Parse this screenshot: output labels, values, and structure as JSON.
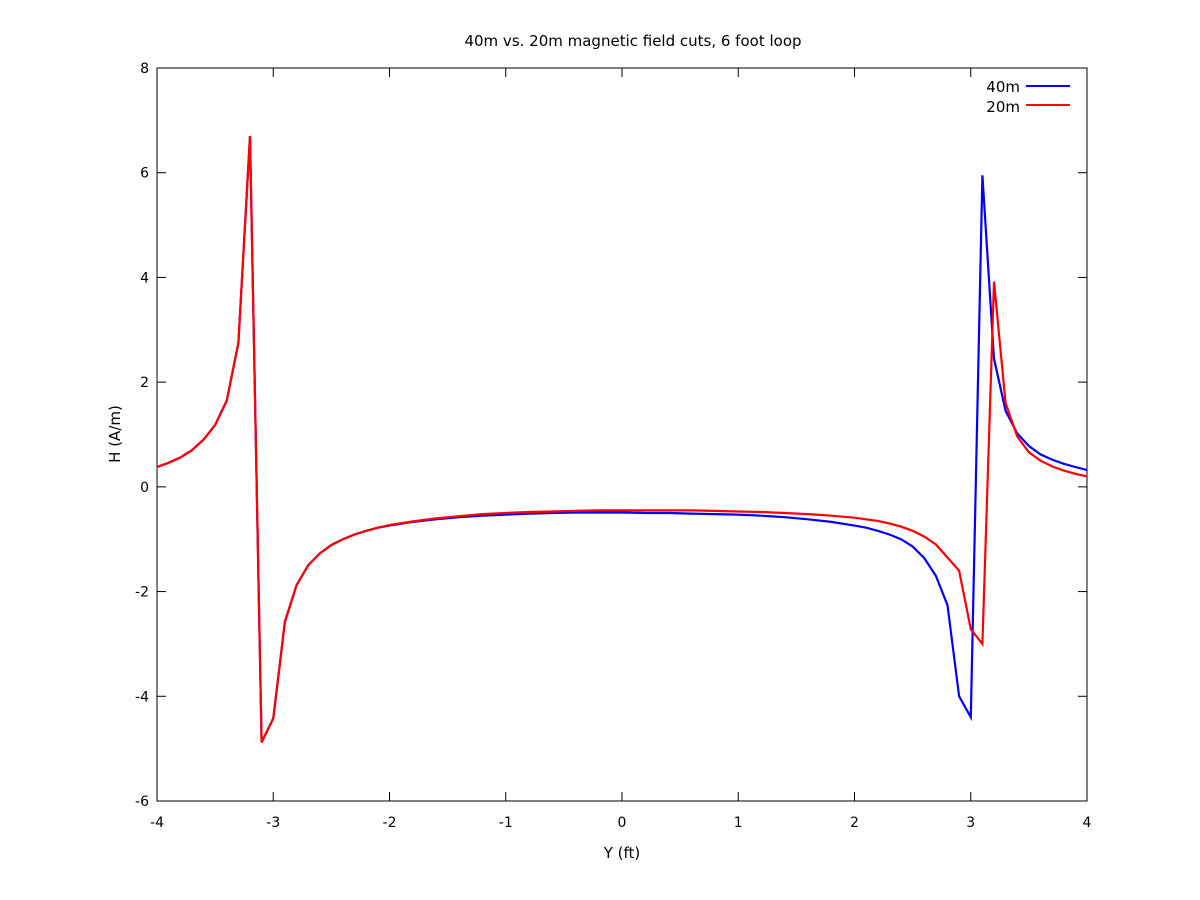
{
  "chart_data": {
    "type": "line",
    "title": "40m vs. 20m magnetic field cuts, 6 foot loop",
    "xlabel": "Y (ft)",
    "ylabel": "H (A/m)",
    "xlim": [
      -4,
      4
    ],
    "ylim": [
      -6,
      8
    ],
    "xticks": [
      -4,
      -3,
      -2,
      -1,
      0,
      1,
      2,
      3,
      4
    ],
    "yticks": [
      -6,
      -4,
      -2,
      0,
      2,
      4,
      6,
      8
    ],
    "grid": false,
    "legend": "top-right",
    "series": [
      {
        "name": "40m",
        "color": "#0000ff",
        "x": [
          -4.0,
          -3.9,
          -3.8,
          -3.7,
          -3.6,
          -3.5,
          -3.4,
          -3.3,
          -3.2,
          -3.1,
          -3.0,
          -2.9,
          -2.8,
          -2.7,
          -2.6,
          -2.5,
          -2.4,
          -2.3,
          -2.2,
          -2.1,
          -2.0,
          -1.8,
          -1.6,
          -1.4,
          -1.2,
          -1.0,
          -0.8,
          -0.6,
          -0.4,
          -0.2,
          0.0,
          0.2,
          0.4,
          0.6,
          0.8,
          1.0,
          1.2,
          1.4,
          1.6,
          1.8,
          2.0,
          2.1,
          2.2,
          2.3,
          2.4,
          2.5,
          2.6,
          2.7,
          2.8,
          2.9,
          3.0,
          3.1,
          3.2,
          3.3,
          3.4,
          3.5,
          3.6,
          3.7,
          3.8,
          3.9,
          4.0
        ],
        "y": [
          0.38,
          0.46,
          0.56,
          0.7,
          0.9,
          1.18,
          1.65,
          2.75,
          6.7,
          -4.88,
          -4.42,
          -2.58,
          -1.88,
          -1.5,
          -1.27,
          -1.11,
          -1.0,
          -0.91,
          -0.84,
          -0.78,
          -0.74,
          -0.67,
          -0.62,
          -0.58,
          -0.55,
          -0.53,
          -0.51,
          -0.5,
          -0.49,
          -0.49,
          -0.49,
          -0.5,
          -0.5,
          -0.51,
          -0.52,
          -0.53,
          -0.55,
          -0.58,
          -0.62,
          -0.67,
          -0.74,
          -0.78,
          -0.84,
          -0.91,
          -1.0,
          -1.14,
          -1.36,
          -1.7,
          -2.26,
          -4.0,
          -4.4,
          5.95,
          2.45,
          1.45,
          1.02,
          0.78,
          0.62,
          0.52,
          0.44,
          0.38,
          0.32
        ]
      },
      {
        "name": "20m",
        "color": "#ff0000",
        "x": [
          -4.0,
          -3.9,
          -3.8,
          -3.7,
          -3.6,
          -3.5,
          -3.4,
          -3.3,
          -3.2,
          -3.1,
          -3.0,
          -2.9,
          -2.8,
          -2.7,
          -2.6,
          -2.5,
          -2.4,
          -2.3,
          -2.2,
          -2.1,
          -2.0,
          -1.8,
          -1.6,
          -1.4,
          -1.2,
          -1.0,
          -0.8,
          -0.6,
          -0.4,
          -0.2,
          0.0,
          0.2,
          0.4,
          0.6,
          0.8,
          1.0,
          1.2,
          1.4,
          1.6,
          1.8,
          2.0,
          2.1,
          2.2,
          2.3,
          2.4,
          2.5,
          2.6,
          2.7,
          2.8,
          2.9,
          3.0,
          3.1,
          3.2,
          3.3,
          3.4,
          3.5,
          3.6,
          3.7,
          3.8,
          3.9,
          4.0
        ],
        "y": [
          0.38,
          0.46,
          0.56,
          0.7,
          0.9,
          1.18,
          1.65,
          2.75,
          6.7,
          -4.88,
          -4.42,
          -2.58,
          -1.88,
          -1.5,
          -1.27,
          -1.11,
          -1.0,
          -0.91,
          -0.84,
          -0.78,
          -0.73,
          -0.66,
          -0.6,
          -0.56,
          -0.52,
          -0.5,
          -0.48,
          -0.47,
          -0.46,
          -0.45,
          -0.45,
          -0.45,
          -0.45,
          -0.45,
          -0.46,
          -0.47,
          -0.48,
          -0.5,
          -0.52,
          -0.55,
          -0.59,
          -0.62,
          -0.65,
          -0.7,
          -0.76,
          -0.84,
          -0.95,
          -1.1,
          -1.35,
          -1.6,
          -2.72,
          -3.0,
          3.92,
          1.6,
          0.96,
          0.66,
          0.5,
          0.39,
          0.31,
          0.25,
          0.2
        ]
      }
    ]
  }
}
